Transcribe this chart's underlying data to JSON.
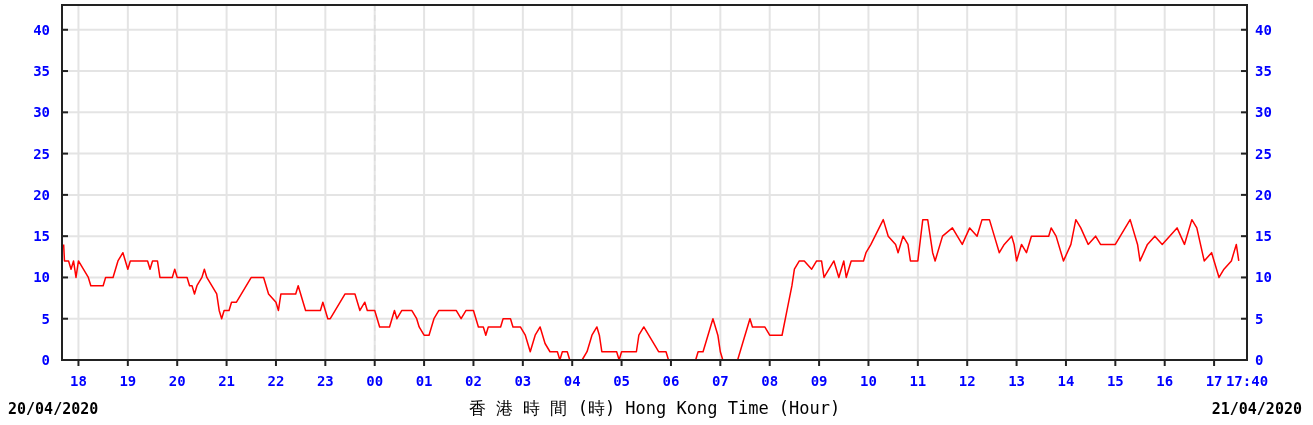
{
  "chart_data": {
    "type": "line",
    "xlabel": "香 港 時 間 (時)  Hong Kong Time (Hour)",
    "annotations": [
      "20/04/2020",
      "21/04/2020"
    ],
    "x": [
      "2020-04-20T17:42",
      "2020-04-20T17:43",
      "2020-04-20T17:48",
      "2020-04-20T17:51",
      "2020-04-20T17:54",
      "2020-04-20T17:57",
      "2020-04-20T18:00",
      "2020-04-20T18:06",
      "2020-04-20T18:12",
      "2020-04-20T18:15",
      "2020-04-20T18:30",
      "2020-04-20T18:33",
      "2020-04-20T18:42",
      "2020-04-20T18:48",
      "2020-04-20T18:54",
      "2020-04-20T18:57",
      "2020-04-20T19:00",
      "2020-04-20T19:03",
      "2020-04-20T19:24",
      "2020-04-20T19:27",
      "2020-04-20T19:30",
      "2020-04-20T19:36",
      "2020-04-20T19:39",
      "2020-04-20T19:54",
      "2020-04-20T19:57",
      "2020-04-20T20:00",
      "2020-04-20T20:12",
      "2020-04-20T20:15",
      "2020-04-20T20:18",
      "2020-04-20T20:21",
      "2020-04-20T20:24",
      "2020-04-20T20:30",
      "2020-04-20T20:33",
      "2020-04-20T20:36",
      "2020-04-20T20:42",
      "2020-04-20T20:48",
      "2020-04-20T20:51",
      "2020-04-20T20:54",
      "2020-04-20T20:57",
      "2020-04-20T21:03",
      "2020-04-20T21:06",
      "2020-04-20T21:12",
      "2020-04-20T21:18",
      "2020-04-20T21:24",
      "2020-04-20T21:30",
      "2020-04-20T21:45",
      "2020-04-20T21:48",
      "2020-04-20T21:51",
      "2020-04-20T22:00",
      "2020-04-20T22:03",
      "2020-04-20T22:06",
      "2020-04-20T22:24",
      "2020-04-20T22:27",
      "2020-04-20T22:30",
      "2020-04-20T22:33",
      "2020-04-20T22:36",
      "2020-04-20T22:54",
      "2020-04-20T22:57",
      "2020-04-20T23:00",
      "2020-04-20T23:03",
      "2020-04-20T23:06",
      "2020-04-20T23:12",
      "2020-04-20T23:18",
      "2020-04-20T23:24",
      "2020-04-20T23:36",
      "2020-04-20T23:42",
      "2020-04-20T23:48",
      "2020-04-20T23:51",
      "2020-04-21T00:00",
      "2020-04-21T00:06",
      "2020-04-21T00:18",
      "2020-04-21T00:21",
      "2020-04-21T00:24",
      "2020-04-21T00:27",
      "2020-04-21T00:33",
      "2020-04-21T00:45",
      "2020-04-21T00:51",
      "2020-04-21T00:54",
      "2020-04-21T01:00",
      "2020-04-21T01:06",
      "2020-04-21T01:12",
      "2020-04-21T01:18",
      "2020-04-21T01:39",
      "2020-04-21T01:45",
      "2020-04-21T01:51",
      "2020-04-21T02:00",
      "2020-04-21T02:03",
      "2020-04-21T02:06",
      "2020-04-21T02:12",
      "2020-04-21T02:15",
      "2020-04-21T02:18",
      "2020-04-21T02:33",
      "2020-04-21T02:36",
      "2020-04-21T02:45",
      "2020-04-21T02:48",
      "2020-04-21T02:57",
      "2020-04-21T03:03",
      "2020-04-21T03:06",
      "2020-04-21T03:09",
      "2020-04-21T03:15",
      "2020-04-21T03:21",
      "2020-04-21T03:27",
      "2020-04-21T03:33",
      "2020-04-21T03:42",
      "2020-04-21T03:45",
      "2020-04-21T03:48",
      "2020-04-21T03:54",
      "2020-04-21T03:57",
      "2020-04-21T04:12",
      "2020-04-21T04:18",
      "2020-04-21T04:24",
      "2020-04-21T04:30",
      "2020-04-21T04:33",
      "2020-04-21T04:36",
      "2020-04-21T04:54",
      "2020-04-21T04:57",
      "2020-04-21T05:00",
      "2020-04-21T05:18",
      "2020-04-21T05:21",
      "2020-04-21T05:27",
      "2020-04-21T05:33",
      "2020-04-21T05:39",
      "2020-04-21T05:45",
      "2020-04-21T05:54",
      "2020-04-21T05:57",
      "2020-04-21T06:30",
      "2020-04-21T06:33",
      "2020-04-21T06:39",
      "2020-04-21T06:42",
      "2020-04-21T06:45",
      "2020-04-21T06:48",
      "2020-04-21T06:51",
      "2020-04-21T06:57",
      "2020-04-21T07:00",
      "2020-04-21T07:03",
      "2020-04-21T07:21",
      "2020-04-21T07:27",
      "2020-04-21T07:33",
      "2020-04-21T07:36",
      "2020-04-21T07:39",
      "2020-04-21T07:54",
      "2020-04-21T08:00",
      "2020-04-21T08:15",
      "2020-04-21T08:21",
      "2020-04-21T08:27",
      "2020-04-21T08:30",
      "2020-04-21T08:36",
      "2020-04-21T08:42",
      "2020-04-21T08:51",
      "2020-04-21T08:57",
      "2020-04-21T09:03",
      "2020-04-21T09:06",
      "2020-04-21T09:12",
      "2020-04-21T09:18",
      "2020-04-21T09:24",
      "2020-04-21T09:30",
      "2020-04-21T09:33",
      "2020-04-21T09:39",
      "2020-04-21T09:54",
      "2020-04-21T09:57",
      "2020-04-21T10:03",
      "2020-04-21T10:18",
      "2020-04-21T10:24",
      "2020-04-21T10:33",
      "2020-04-21T10:36",
      "2020-04-21T10:42",
      "2020-04-21T10:48",
      "2020-04-21T10:51",
      "2020-04-21T11:00",
      "2020-04-21T11:06",
      "2020-04-21T11:12",
      "2020-04-21T11:18",
      "2020-04-21T11:21",
      "2020-04-21T11:30",
      "2020-04-21T11:42",
      "2020-04-21T11:48",
      "2020-04-21T11:54",
      "2020-04-21T12:03",
      "2020-04-21T12:12",
      "2020-04-21T12:18",
      "2020-04-21T12:27",
      "2020-04-21T12:33",
      "2020-04-21T12:39",
      "2020-04-21T12:45",
      "2020-04-21T12:54",
      "2020-04-21T12:57",
      "2020-04-21T13:00",
      "2020-04-21T13:06",
      "2020-04-21T13:12",
      "2020-04-21T13:18",
      "2020-04-21T13:39",
      "2020-04-21T13:42",
      "2020-04-21T13:48",
      "2020-04-21T13:57",
      "2020-04-21T14:06",
      "2020-04-21T14:12",
      "2020-04-21T14:18",
      "2020-04-21T14:27",
      "2020-04-21T14:36",
      "2020-04-21T14:42",
      "2020-04-21T15:00",
      "2020-04-21T15:06",
      "2020-04-21T15:18",
      "2020-04-21T15:27",
      "2020-04-21T15:30",
      "2020-04-21T15:39",
      "2020-04-21T15:48",
      "2020-04-21T15:57",
      "2020-04-21T16:06",
      "2020-04-21T16:15",
      "2020-04-21T16:24",
      "2020-04-21T16:33",
      "2020-04-21T16:39",
      "2020-04-21T16:48",
      "2020-04-21T16:57",
      "2020-04-21T17:00",
      "2020-04-21T17:06",
      "2020-04-21T17:12",
      "2020-04-21T17:21",
      "2020-04-21T17:27",
      "2020-04-21T17:30"
    ],
    "series": [
      {
        "color": "#ff0000",
        "values": [
          14,
          12,
          12,
          11,
          12,
          10,
          12,
          11,
          10,
          9,
          9,
          10,
          10,
          12,
          13,
          12,
          11,
          12,
          12,
          11,
          12,
          12,
          10,
          10,
          11,
          10,
          10,
          9,
          9,
          8,
          9,
          10,
          11,
          10,
          9,
          8,
          6,
          5,
          6,
          6,
          7,
          7,
          8,
          9,
          10,
          10,
          9,
          8,
          7,
          6,
          8,
          8,
          9,
          8,
          7,
          6,
          6,
          7,
          6,
          5,
          5,
          6,
          7,
          8,
          8,
          6,
          7,
          6,
          6,
          4,
          4,
          5,
          6,
          5,
          6,
          6,
          5,
          4,
          3,
          3,
          5,
          6,
          6,
          5,
          6,
          6,
          5,
          4,
          4,
          3,
          4,
          4,
          5,
          5,
          4,
          4,
          3,
          2,
          1,
          3,
          4,
          2,
          1,
          1,
          0,
          1,
          1,
          0,
          0,
          1,
          3,
          4,
          3,
          1,
          1,
          0,
          1,
          1,
          3,
          4,
          3,
          2,
          1,
          1,
          0,
          0,
          1,
          1,
          2,
          3,
          4,
          5,
          3,
          1,
          0,
          0,
          2,
          4,
          5,
          4,
          4,
          3,
          3,
          6,
          9,
          11,
          12,
          12,
          11,
          12,
          12,
          10,
          11,
          12,
          10,
          12,
          10,
          12,
          12,
          13,
          14,
          17,
          15,
          14,
          13,
          15,
          14,
          12,
          12,
          17,
          17,
          13,
          12,
          15,
          16,
          15,
          14,
          16,
          15,
          17,
          17,
          15,
          13,
          14,
          15,
          14,
          12,
          14,
          13,
          15,
          15,
          16,
          15,
          12,
          14,
          17,
          16,
          14,
          15,
          14,
          14,
          15,
          17,
          14,
          12,
          14,
          15,
          14,
          15,
          16,
          14,
          17,
          16,
          12,
          13,
          12,
          10,
          11,
          12,
          14,
          12
        ]
      }
    ],
    "xlim": [
      "2020-04-20T17:40",
      "2020-04-21T17:40"
    ],
    "xticks": [
      {
        "value": "2020-04-20T18:00",
        "label": "18"
      },
      {
        "value": "2020-04-20T19:00",
        "label": "19"
      },
      {
        "value": "2020-04-20T20:00",
        "label": "20"
      },
      {
        "value": "2020-04-20T21:00",
        "label": "21"
      },
      {
        "value": "2020-04-20T22:00",
        "label": "22"
      },
      {
        "value": "2020-04-20T23:00",
        "label": "23"
      },
      {
        "value": "2020-04-21T00:00",
        "label": "00"
      },
      {
        "value": "2020-04-21T01:00",
        "label": "01"
      },
      {
        "value": "2020-04-21T02:00",
        "label": "02"
      },
      {
        "value": "2020-04-21T03:00",
        "label": "03"
      },
      {
        "value": "2020-04-21T04:00",
        "label": "04"
      },
      {
        "value": "2020-04-21T05:00",
        "label": "05"
      },
      {
        "value": "2020-04-21T06:00",
        "label": "06"
      },
      {
        "value": "2020-04-21T07:00",
        "label": "07"
      },
      {
        "value": "2020-04-21T08:00",
        "label": "08"
      },
      {
        "value": "2020-04-21T09:00",
        "label": "09"
      },
      {
        "value": "2020-04-21T10:00",
        "label": "10"
      },
      {
        "value": "2020-04-21T11:00",
        "label": "11"
      },
      {
        "value": "2020-04-21T12:00",
        "label": "12"
      },
      {
        "value": "2020-04-21T13:00",
        "label": "13"
      },
      {
        "value": "2020-04-21T14:00",
        "label": "14"
      },
      {
        "value": "2020-04-21T15:00",
        "label": "15"
      },
      {
        "value": "2020-04-21T16:00",
        "label": "16"
      },
      {
        "value": "2020-04-21T17:00",
        "label": "17"
      },
      {
        "value": "2020-04-21T17:40",
        "label": "17:40"
      }
    ],
    "ylim": [
      0,
      43
    ],
    "yticks": [
      0,
      5,
      10,
      15,
      20,
      25,
      30,
      35,
      40
    ],
    "y2lim": [
      0,
      43
    ],
    "y2ticks": [
      0,
      5,
      10,
      15,
      20,
      25,
      30,
      35,
      40
    ],
    "grid": true,
    "ref_lines": [
      {
        "axis": "x",
        "value": "2020-04-21T00:00",
        "color": "#dddddd",
        "line_style": "dashed"
      }
    ]
  }
}
